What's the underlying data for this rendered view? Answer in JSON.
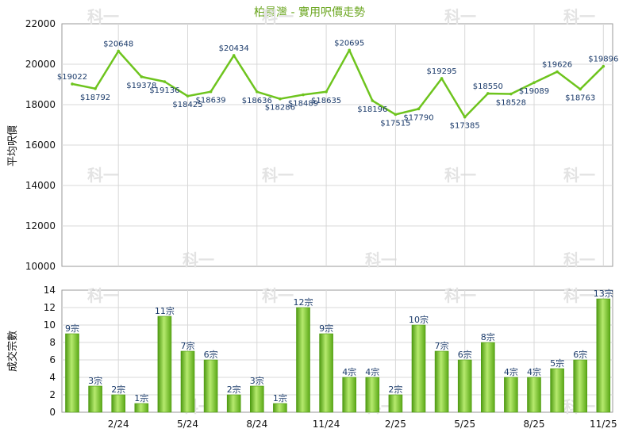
{
  "chart_data": [
    {
      "type": "line",
      "title": "柏景灣 - 實用呎價走勢",
      "xlabel": "",
      "ylabel": "平均呎價",
      "ylim": [
        10000,
        22000
      ],
      "yticks": [
        10000,
        12000,
        14000,
        16000,
        18000,
        20000,
        22000
      ],
      "x_tick_labels": [
        "2/24",
        "5/24",
        "8/24",
        "11/24",
        "2/25",
        "5/25",
        "8/25",
        "11/25"
      ],
      "grid": true,
      "line_color": "#6ec41e",
      "series": [
        {
          "values": [
            19022,
            18792,
            20648,
            19378,
            19136,
            18425,
            18639,
            20434,
            18636,
            18286,
            18489,
            18635,
            20695,
            18196,
            17515,
            17790,
            19295,
            17385,
            18550,
            18528,
            19089,
            19626,
            18763,
            19896
          ],
          "point_labels": [
            "$19022",
            "$18792",
            "$20648",
            "$19378",
            "$19136",
            "$18425",
            "$18639",
            "$20434",
            "$18636",
            "$18286",
            "$18489",
            "$18635",
            "$20695",
            "$18196",
            "$17515",
            "$17790",
            "$19295",
            "$17385",
            "$18550",
            "$18528",
            "$19089",
            "$19626",
            "$18763",
            "$19896"
          ]
        }
      ]
    },
    {
      "type": "bar",
      "ylabel": "成交宗數",
      "ylim": [
        0,
        14
      ],
      "yticks": [
        0,
        2,
        4,
        6,
        8,
        10,
        12,
        14
      ],
      "x_tick_labels": [
        "2/24",
        "5/24",
        "8/24",
        "11/24",
        "2/25",
        "5/25",
        "8/25",
        "11/25"
      ],
      "grid": true,
      "bar_color": "#6ec41e",
      "values": [
        9,
        3,
        2,
        1,
        11,
        7,
        6,
        2,
        3,
        1,
        12,
        9,
        4,
        4,
        2,
        10,
        7,
        6,
        8,
        4,
        4,
        5,
        6,
        13
      ],
      "bar_labels": [
        "9宗",
        "3宗",
        "2宗",
        "1宗",
        "11宗",
        "7宗",
        "6宗",
        "2宗",
        "3宗",
        "1宗",
        "12宗",
        "9宗",
        "4宗",
        "4宗",
        "2宗",
        "10宗",
        "7宗",
        "6宗",
        "8宗",
        "4宗",
        "4宗",
        "5宗",
        "6宗",
        "13宗"
      ]
    }
  ],
  "watermark": "科一"
}
